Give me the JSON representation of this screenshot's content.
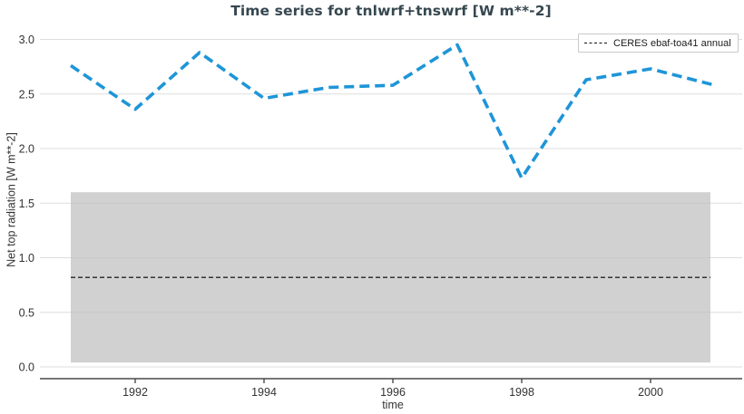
{
  "chart_data": {
    "type": "line",
    "title": "Time series for tnlwrf+tnswrf [W m**-2]",
    "xlabel": "time",
    "ylabel": "Net top radiation [W m**-2]",
    "x": [
      1991,
      1992,
      1993,
      1994,
      1995,
      1996,
      1997,
      1998,
      1999,
      2000,
      2001
    ],
    "series": [
      {
        "name": "tnlwrf+tnswrf",
        "style": "dashed",
        "color": "#1e95d8",
        "values": [
          2.76,
          2.36,
          2.88,
          2.46,
          2.56,
          2.58,
          2.95,
          1.73,
          2.63,
          2.73,
          2.58
        ]
      }
    ],
    "reference": {
      "label": "CERES ebaf-toa41 annual",
      "style": "dashed",
      "color": "#000000",
      "value": 0.82,
      "band": [
        0.04,
        1.6
      ]
    },
    "xticks": [
      1992,
      1994,
      1996,
      1998,
      2000
    ],
    "yticks": [
      0.0,
      0.5,
      1.0,
      1.5,
      2.0,
      2.5,
      3.0
    ],
    "ylim": [
      -0.11,
      3.11
    ],
    "xlim": [
      1990.5,
      2001.45
    ],
    "grid": "horizontal",
    "legend_position": "top-right"
  },
  "colors": {
    "series_blue": "#1e95d8",
    "band_gray": "#bfbfbf",
    "gridline": "#dddddd",
    "axis": "#4a4a4a",
    "title_text": "#36474f",
    "tick_text": "#333333",
    "legend_border": "#c9c9c9"
  }
}
